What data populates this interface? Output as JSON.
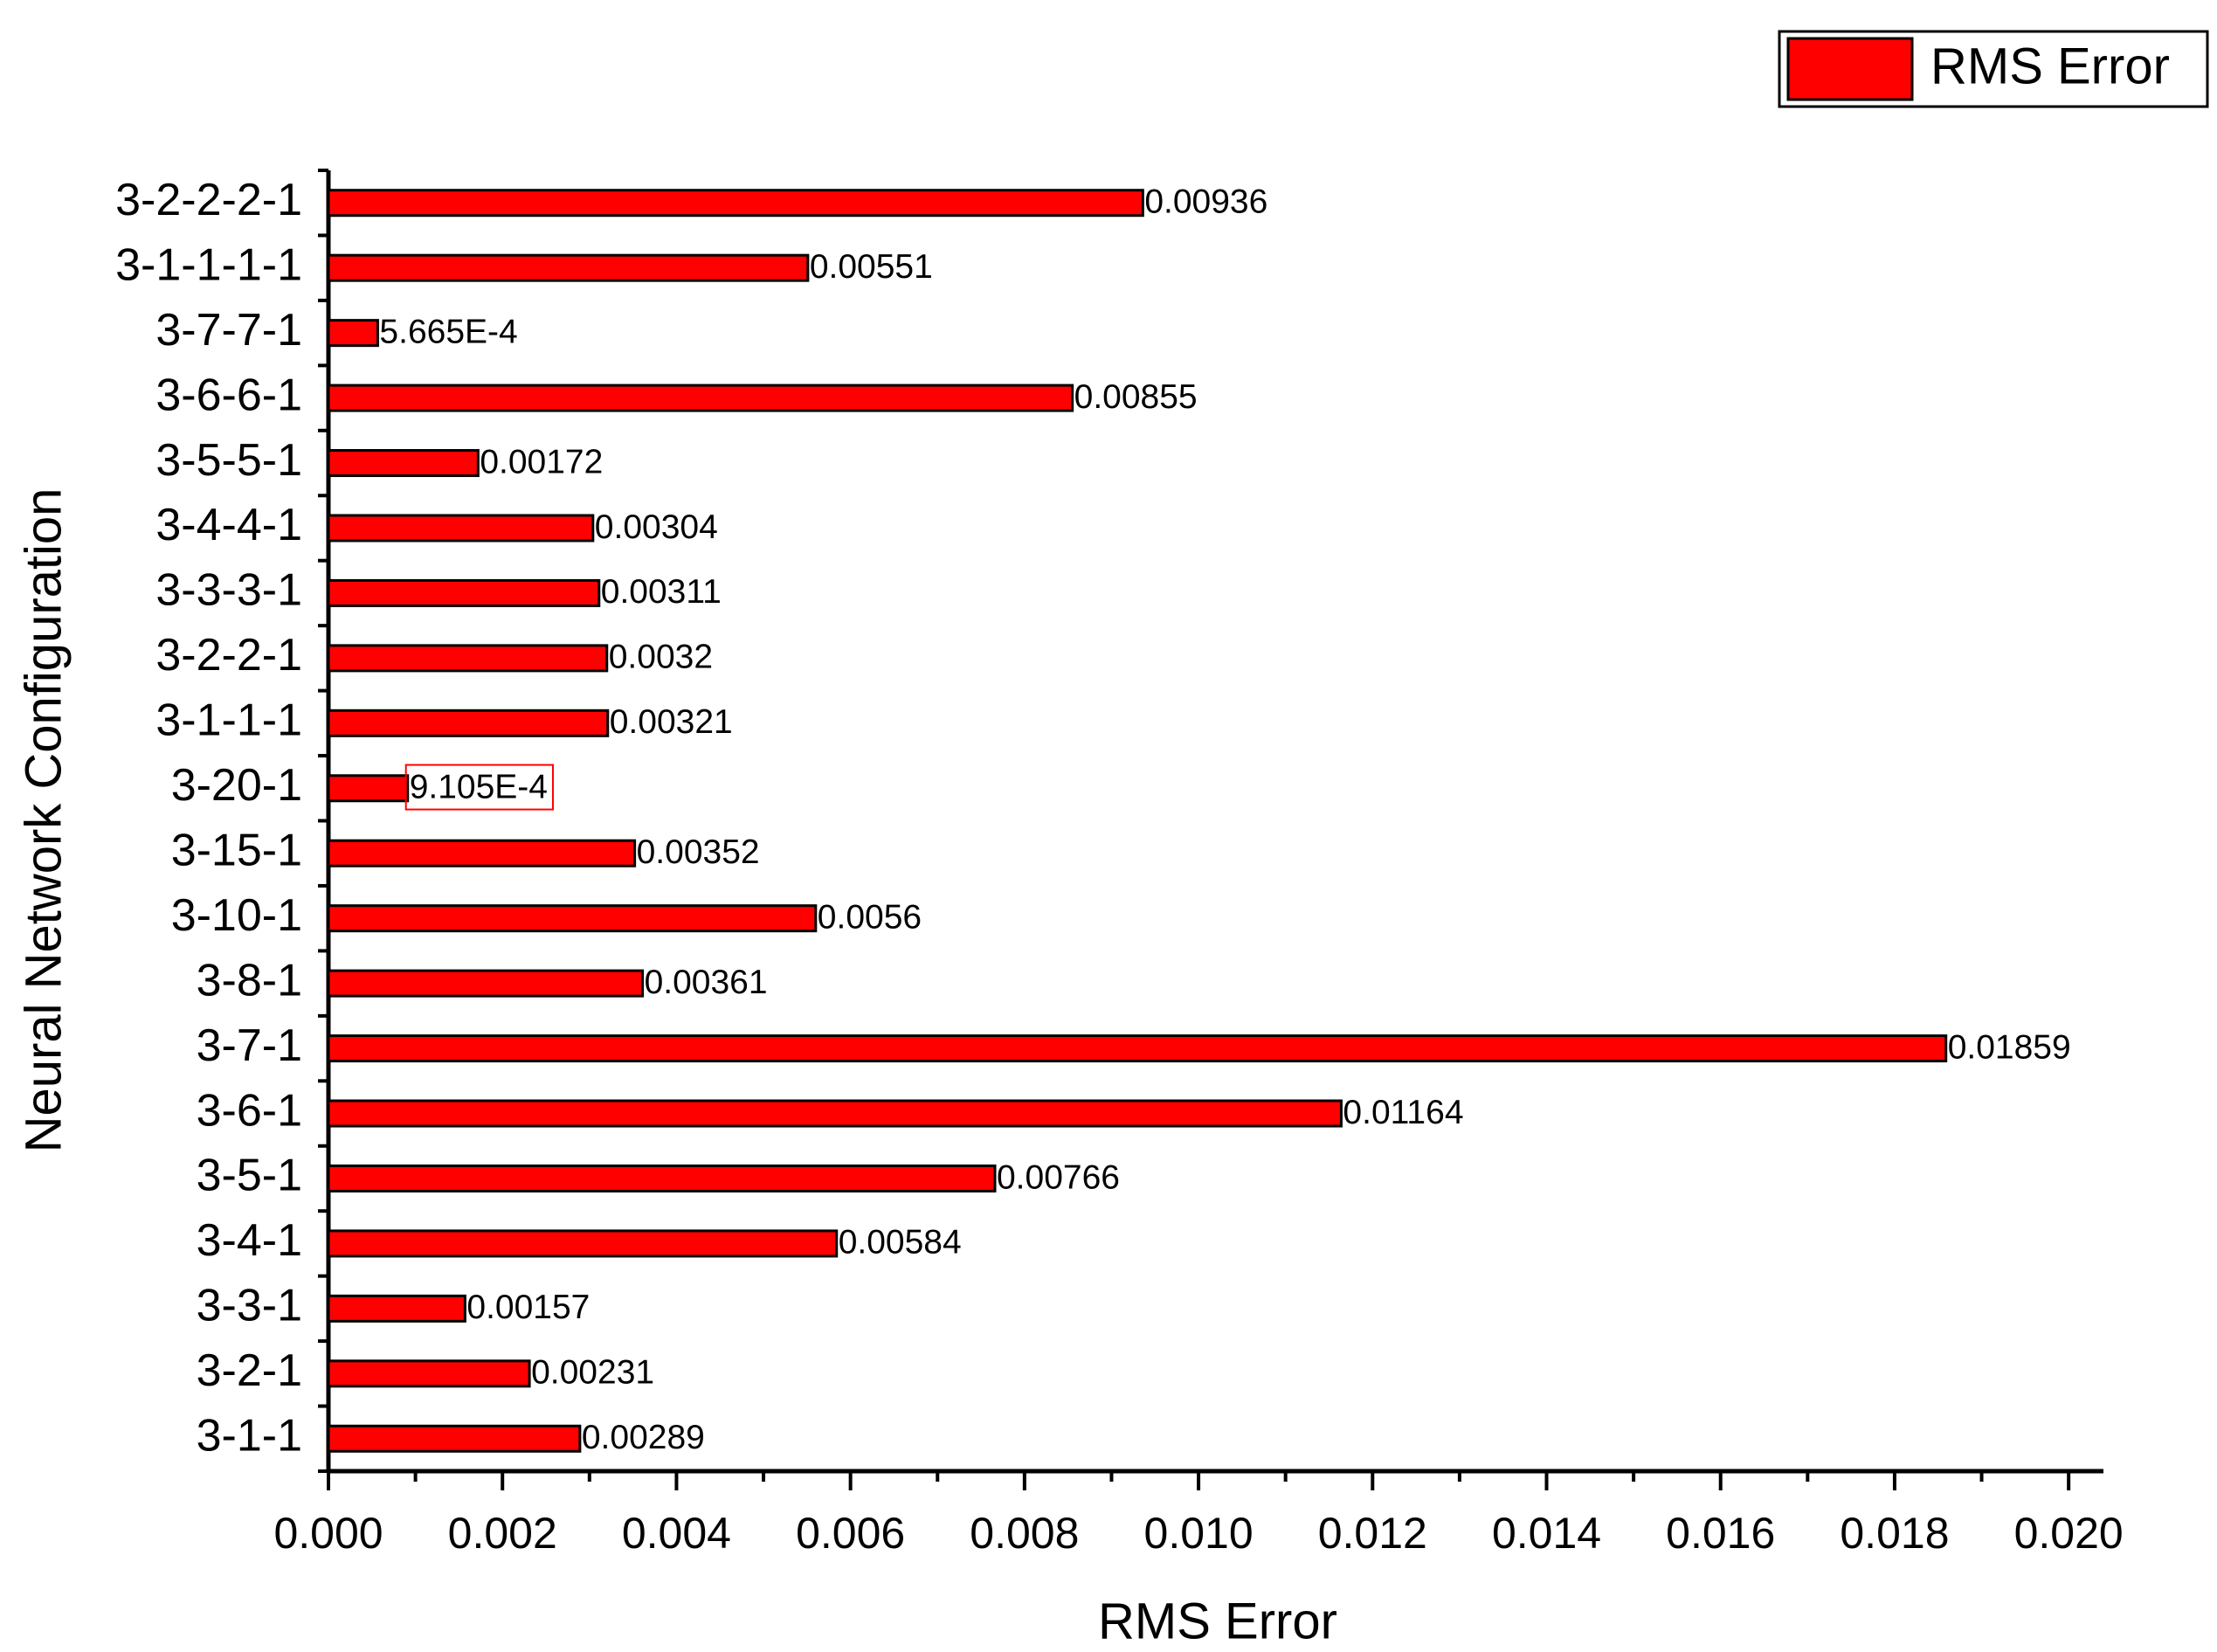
{
  "chart_data": {
    "type": "bar",
    "orientation": "horizontal",
    "x_label": "RMS Error",
    "y_label": "Neural Network Configuration",
    "categories": [
      "3-2-2-2-1",
      "3-1-1-1-1",
      "3-7-7-1",
      "3-6-6-1",
      "3-5-5-1",
      "3-4-4-1",
      "3-3-3-1",
      "3-2-2-1",
      "3-1-1-1",
      "3-20-1",
      "3-15-1",
      "3-10-1",
      "3-8-1",
      "3-7-1",
      "3-6-1",
      "3-5-1",
      "3-4-1",
      "3-3-1",
      "3-2-1",
      "3-1-1"
    ],
    "series": [
      {
        "name": "RMS Error",
        "color": "#ff0000",
        "values": [
          0.00936,
          0.00551,
          0.0005665,
          0.00855,
          0.00172,
          0.00304,
          0.00311,
          0.0032,
          0.00321,
          0.0009105,
          0.00352,
          0.0056,
          0.00361,
          0.01859,
          0.01164,
          0.00766,
          0.00584,
          0.00157,
          0.00231,
          0.00289
        ],
        "value_labels": [
          "0.00936",
          "0.00551",
          "5.665E-4",
          "0.00855",
          "0.00172",
          "0.00304",
          "0.00311",
          "0.0032",
          "0.00321",
          "9.105E-4",
          "0.00352",
          "0.0056",
          "0.00361",
          "0.01859",
          "0.01164",
          "0.00766",
          "0.00584",
          "0.00157",
          "0.00231",
          "0.00289"
        ]
      }
    ],
    "xlim": [
      0,
      0.0204
    ],
    "xticks": [
      {
        "value": 0,
        "label": "0.000"
      },
      {
        "value": 0.002,
        "label": "0.002"
      },
      {
        "value": 0.004,
        "label": "0.004"
      },
      {
        "value": 0.006,
        "label": "0.006"
      },
      {
        "value": 0.008,
        "label": "0.008"
      },
      {
        "value": 0.01,
        "label": "0.010"
      },
      {
        "value": 0.012,
        "label": "0.012"
      },
      {
        "value": 0.014,
        "label": "0.014"
      },
      {
        "value": 0.016,
        "label": "0.016"
      },
      {
        "value": 0.018,
        "label": "0.018"
      },
      {
        "value": 0.02,
        "label": "0.020"
      }
    ],
    "grid": false,
    "legend": "top-right",
    "highlight_index": 9
  }
}
